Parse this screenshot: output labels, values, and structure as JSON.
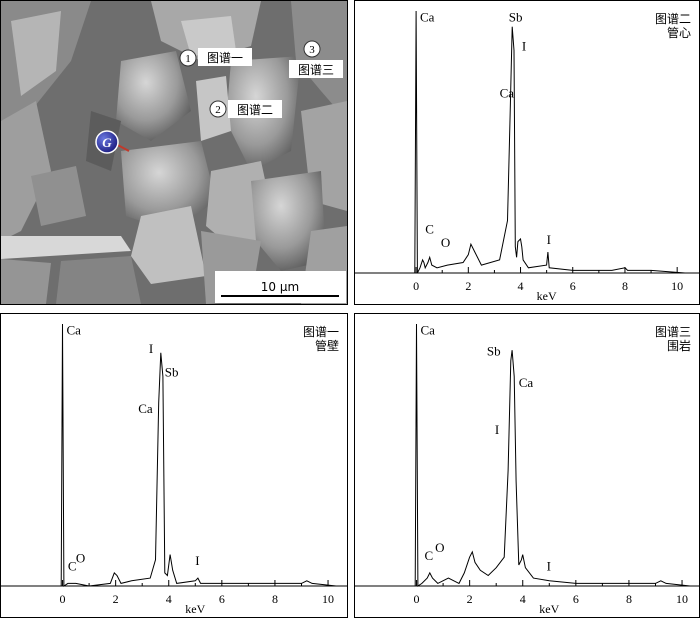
{
  "sem_image": {
    "scale_bar": "10 μm",
    "marker_g": "G",
    "points": [
      {
        "num": "1",
        "label": "图谱一"
      },
      {
        "num": "2",
        "label": "图谱二"
      },
      {
        "num": "3",
        "label": "图谱三"
      }
    ]
  },
  "chart_data": [
    {
      "id": "spectrum-2",
      "type": "line",
      "caption": [
        "图谱二",
        "管心"
      ],
      "xlabel": "keV",
      "xlim": [
        -1,
        10.3
      ],
      "ylim": [
        0,
        100
      ],
      "xticks": [
        0,
        2,
        4,
        6,
        8,
        10
      ],
      "x": [
        -1,
        -0.05,
        0,
        0.05,
        0.15,
        0.25,
        0.3,
        0.35,
        0.45,
        0.52,
        0.6,
        0.8,
        1.2,
        1.8,
        2.0,
        2.1,
        2.25,
        2.5,
        3.2,
        3.5,
        3.6,
        3.68,
        3.75,
        3.8,
        3.85,
        3.9,
        4.0,
        4.05,
        4.1,
        4.3,
        5.0,
        5.05,
        5.1,
        6.0,
        6.5,
        7.5,
        8.0,
        8.1,
        8.2,
        9.0,
        10.3
      ],
      "values": [
        0,
        0,
        100,
        0,
        2,
        5,
        4,
        2,
        4,
        6,
        3,
        2,
        3,
        4,
        7,
        11,
        8,
        3,
        5,
        20,
        60,
        94,
        85,
        10,
        6,
        12,
        13,
        10,
        5,
        2,
        3,
        8,
        2,
        1,
        1,
        1,
        2,
        1,
        1,
        1,
        0
      ],
      "peak_labels": [
        {
          "text": "Ca",
          "x": 0.15,
          "y": 96
        },
        {
          "text": "Sb",
          "x": 3.55,
          "y": 96
        },
        {
          "text": "I",
          "x": 4.05,
          "y": 85
        },
        {
          "text": "Ca",
          "x": 3.2,
          "y": 67
        },
        {
          "text": "C",
          "x": 0.35,
          "y": 15
        },
        {
          "text": "O",
          "x": 0.95,
          "y": 10
        },
        {
          "text": "I",
          "x": 5.0,
          "y": 11
        }
      ]
    },
    {
      "id": "spectrum-1",
      "type": "line",
      "caption": [
        "图谱一",
        "管壁"
      ],
      "xlabel": "keV",
      "xlim": [
        -1,
        10.3
      ],
      "ylim": [
        0,
        100
      ],
      "xticks": [
        0,
        2,
        4,
        6,
        8,
        10
      ],
      "x": [
        -1,
        -0.05,
        0,
        0.05,
        0.2,
        0.5,
        1.0,
        1.8,
        1.95,
        2.05,
        2.2,
        2.6,
        3.3,
        3.5,
        3.62,
        3.7,
        3.78,
        3.85,
        3.95,
        4.05,
        4.15,
        4.3,
        5.0,
        5.1,
        5.2,
        6.0,
        7.0,
        8.0,
        9.0,
        9.2,
        9.4,
        10.3
      ],
      "values": [
        0,
        0,
        100,
        0,
        1,
        1,
        0,
        1,
        5,
        4,
        1,
        2,
        3,
        10,
        70,
        89,
        80,
        5,
        4,
        12,
        6,
        1,
        2,
        3,
        1,
        1,
        1,
        1,
        1,
        2,
        1,
        0
      ],
      "peak_labels": [
        {
          "text": "Ca",
          "x": 0.15,
          "y": 96
        },
        {
          "text": "I",
          "x": 3.25,
          "y": 89
        },
        {
          "text": "Sb",
          "x": 3.85,
          "y": 80
        },
        {
          "text": "Ca",
          "x": 2.85,
          "y": 66
        },
        {
          "text": "C",
          "x": 0.2,
          "y": 6
        },
        {
          "text": "O",
          "x": 0.5,
          "y": 9
        },
        {
          "text": "I",
          "x": 5.0,
          "y": 8
        }
      ]
    },
    {
      "id": "spectrum-3",
      "type": "line",
      "caption": [
        "图谱三",
        "围岩"
      ],
      "xlabel": "keV",
      "xlim": [
        -1,
        10.3
      ],
      "ylim": [
        0,
        100
      ],
      "xticks": [
        0,
        2,
        4,
        6,
        8,
        10
      ],
      "x": [
        -1,
        -0.05,
        0,
        0.05,
        0.2,
        0.4,
        0.5,
        0.6,
        0.8,
        1.2,
        1.6,
        1.8,
        2.0,
        2.1,
        2.2,
        2.4,
        2.7,
        3.0,
        3.3,
        3.45,
        3.55,
        3.6,
        3.68,
        3.75,
        3.85,
        3.95,
        4.0,
        4.1,
        4.4,
        5.0,
        6.0,
        7.0,
        8.0,
        9.0,
        9.2,
        9.4,
        10.3
      ],
      "values": [
        0,
        0,
        100,
        0,
        1,
        3,
        5,
        3,
        1,
        3,
        1,
        5,
        11,
        13,
        9,
        6,
        4,
        7,
        11,
        44,
        86,
        90,
        80,
        40,
        8,
        10,
        12,
        7,
        3,
        2,
        1,
        1,
        1,
        1,
        2,
        1,
        0
      ],
      "peak_labels": [
        {
          "text": "Ca",
          "x": 0.15,
          "y": 96
        },
        {
          "text": "Sb",
          "x": 2.65,
          "y": 88
        },
        {
          "text": "Ca",
          "x": 3.85,
          "y": 76
        },
        {
          "text": "I",
          "x": 2.95,
          "y": 58
        },
        {
          "text": "C",
          "x": 0.3,
          "y": 10
        },
        {
          "text": "O",
          "x": 0.7,
          "y": 13
        },
        {
          "text": "I",
          "x": 4.9,
          "y": 6
        }
      ]
    }
  ]
}
